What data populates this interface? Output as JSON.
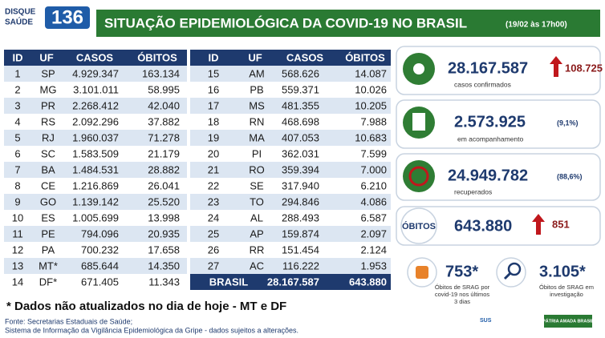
{
  "header": {
    "logo": {
      "line1": "DISQUE",
      "line2": "SAÚDE",
      "number": "136"
    },
    "title": "SITUAÇÃO EPIDEMIOLÓGICA DA COVID-19 NO BRASIL",
    "date": "(19/02 às 17h00)"
  },
  "tables": [
    {
      "columns": [
        "ID",
        "UF",
        "CASOS",
        "ÓBITOS"
      ],
      "rows": [
        [
          "1",
          "SP",
          "4.929.347",
          "163.134"
        ],
        [
          "2",
          "MG",
          "3.101.011",
          "58.995"
        ],
        [
          "3",
          "PR",
          "2.268.412",
          "42.040"
        ],
        [
          "4",
          "RS",
          "2.092.296",
          "37.882"
        ],
        [
          "5",
          "RJ",
          "1.960.037",
          "71.278"
        ],
        [
          "6",
          "SC",
          "1.583.509",
          "21.179"
        ],
        [
          "7",
          "BA",
          "1.484.531",
          "28.882"
        ],
        [
          "8",
          "CE",
          "1.216.869",
          "26.041"
        ],
        [
          "9",
          "GO",
          "1.139.142",
          "25.520"
        ],
        [
          "10",
          "ES",
          "1.005.699",
          "13.998"
        ],
        [
          "11",
          "PE",
          "794.096",
          "20.935"
        ],
        [
          "12",
          "PA",
          "700.232",
          "17.658"
        ],
        [
          "13",
          "MT*",
          "685.644",
          "14.350"
        ],
        [
          "14",
          "DF*",
          "671.405",
          "11.343"
        ]
      ]
    },
    {
      "columns": [
        "ID",
        "UF",
        "CASOS",
        "ÓBITOS"
      ],
      "rows": [
        [
          "15",
          "AM",
          "568.626",
          "14.087"
        ],
        [
          "16",
          "PB",
          "559.371",
          "10.026"
        ],
        [
          "17",
          "MS",
          "481.355",
          "10.205"
        ],
        [
          "18",
          "RN",
          "468.698",
          "7.988"
        ],
        [
          "19",
          "MA",
          "407.053",
          "10.683"
        ],
        [
          "20",
          "PI",
          "362.031",
          "7.599"
        ],
        [
          "21",
          "RO",
          "359.394",
          "7.000"
        ],
        [
          "22",
          "SE",
          "317.940",
          "6.210"
        ],
        [
          "23",
          "TO",
          "294.846",
          "4.086"
        ],
        [
          "24",
          "AL",
          "288.493",
          "6.587"
        ],
        [
          "25",
          "AP",
          "159.874",
          "2.097"
        ],
        [
          "26",
          "RR",
          "151.454",
          "2.124"
        ],
        [
          "27",
          "AC",
          "116.222",
          "1.953"
        ]
      ],
      "total": [
        "BRASIL",
        "28.167.587",
        "643.880"
      ]
    }
  ],
  "cards": [
    {
      "number": "28.167.587",
      "extra": "108.725",
      "caption": "casos confirmados"
    },
    {
      "number": "2.573.925",
      "extra": "(9,1%)",
      "caption": "em acompanhamento"
    },
    {
      "number": "24.949.782",
      "extra": "(88,6%)",
      "caption": "recuperados"
    },
    {
      "label": "ÓBITOS",
      "number": "643.880",
      "extra": "851"
    }
  ],
  "srag": [
    {
      "number": "753*",
      "caption": [
        "Óbitos de SRAG por",
        "covid-19 nos últimos",
        "3 dias"
      ]
    },
    {
      "number": "3.105*",
      "caption": [
        "Óbitos de SRAG em",
        "investigação"
      ]
    }
  ],
  "footer": {
    "note": "* Dados não atualizados no dia de hoje - MT e DF",
    "source": "Fonte: Secretarias Estaduais de Saúde;",
    "system": "Sistema de Informação da Vigilância Epidemiológica da Gripe - dados sujeitos a alterações.",
    "logos": [
      "SUS",
      "PÁTRIA AMADA BRASIL"
    ]
  }
}
